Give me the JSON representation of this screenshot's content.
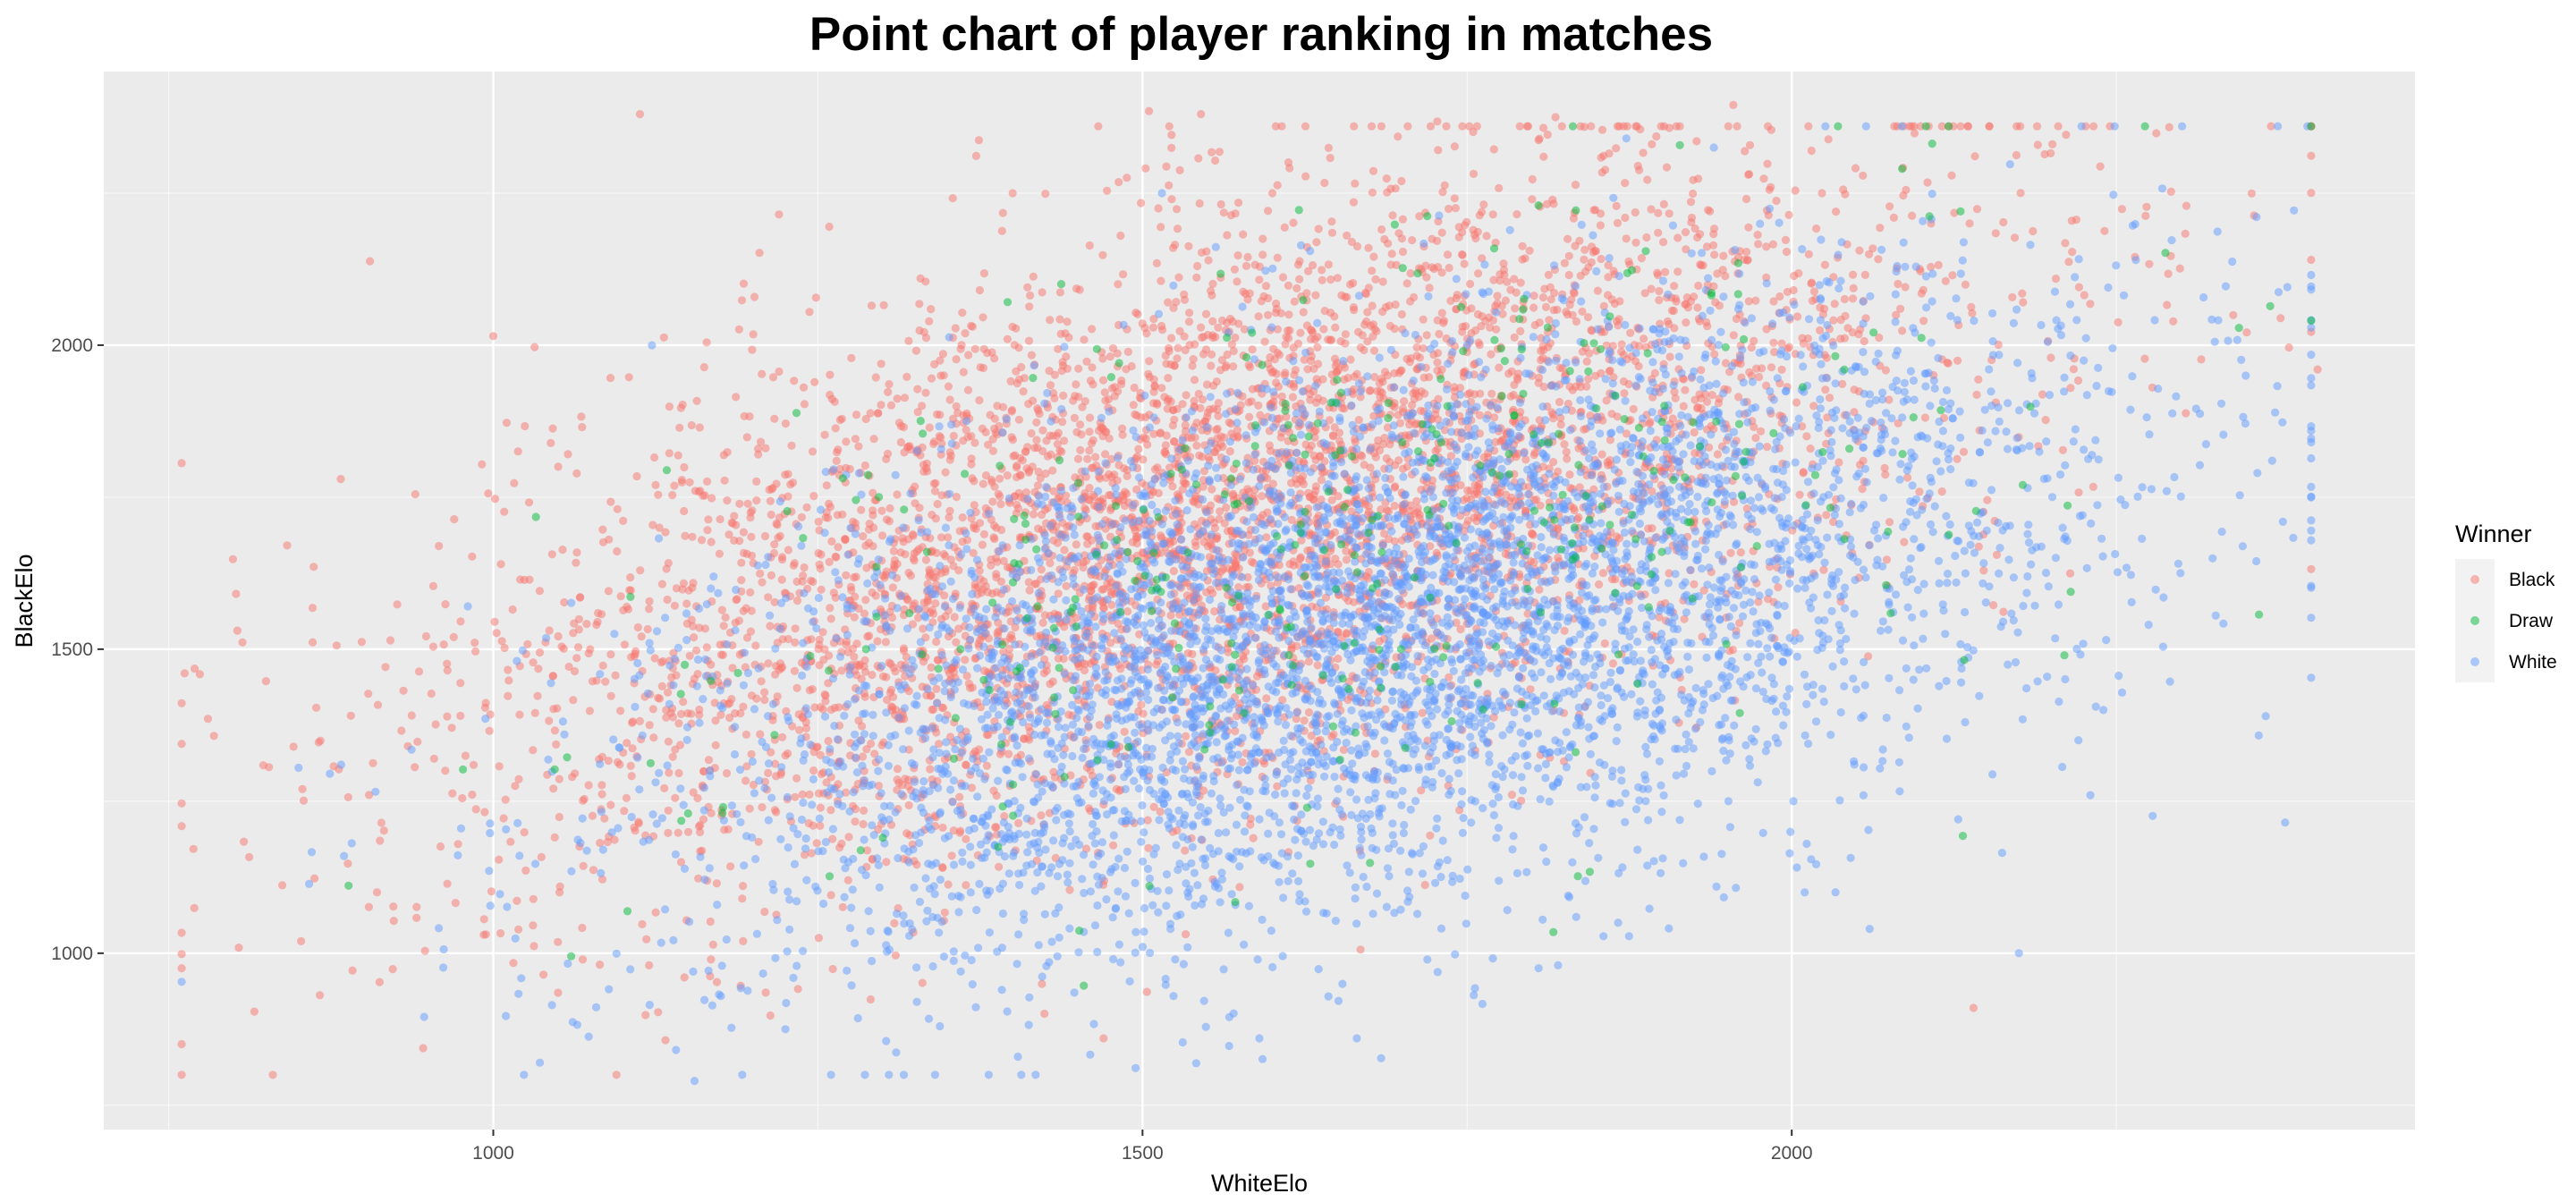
{
  "chart_data": {
    "type": "scatter",
    "title": "Point chart of player ranking in matches",
    "xlabel": "WhiteElo",
    "ylabel": "BlackElo",
    "xlim": [
      700,
      2480
    ],
    "ylim": [
      710,
      2450
    ],
    "x_ticks": [
      1000,
      1500,
      2000
    ],
    "x_minor_ticks": [
      750,
      1250,
      1750,
      2250
    ],
    "y_ticks": [
      1000,
      1500,
      2000
    ],
    "y_minor_ticks": [
      750,
      1250,
      1750,
      2250
    ],
    "grid": true,
    "point_alpha": 0.5,
    "legend": {
      "title": "Winner",
      "placement": "right",
      "entries": [
        "Black",
        "Draw",
        "White"
      ]
    },
    "colors": {
      "panel_background": "#ebebeb",
      "grid": "#ffffff",
      "Black": "#F8766D",
      "Draw": "#00BA38",
      "White": "#619CFF"
    },
    "series": [
      {
        "name": "Black",
        "points_note": "dense cloud, concentrated upper-left of diagonal",
        "x": [
          770,
          812,
          905,
          1000,
          1113,
          1505,
          1545,
          1727,
          1818,
          1955,
          2140,
          2405,
          1400,
          1220,
          1050,
          1330,
          1600,
          1660,
          1800,
          1470,
          1100,
          1480,
          1120
        ],
        "y": [
          1468,
          1158,
          2138,
          2015,
          2380,
          2385,
          2380,
          2368,
          2375,
          2395,
          910,
          1960,
          2250,
          2215,
          1800,
          1900,
          2250,
          2100,
          2240,
          860,
          1330,
          1270,
          980
        ]
      },
      {
        "name": "Draw",
        "points_note": "sparse, scattered across the main cloud",
        "x": [
          1060,
          1440,
          1805,
          2085,
          2130,
          2210,
          1300,
          1580,
          1700,
          1900,
          1150,
          1960
        ],
        "y": [
          995,
          1290,
          2230,
          2290,
          2220,
          1490,
          1190,
          1980,
          1840,
          1660,
          1230,
          1395
        ]
      },
      {
        "name": "White",
        "points_note": "dense cloud, concentrated lower-right of diagonal",
        "x": [
          850,
          885,
          1155,
          1225,
          1515,
          1590,
          1665,
          1940,
          2175,
          2240,
          2265,
          2365,
          2370,
          2380,
          1750,
          2010,
          1820,
          2060,
          2230
        ],
        "y": [
          1305,
          1160,
          790,
          875,
          2250,
          860,
          860,
          2325,
          1000,
          1400,
          2140,
          1390,
          1810,
          1215,
          2000,
          1100,
          980,
          1040,
          1260
        ]
      }
    ]
  }
}
